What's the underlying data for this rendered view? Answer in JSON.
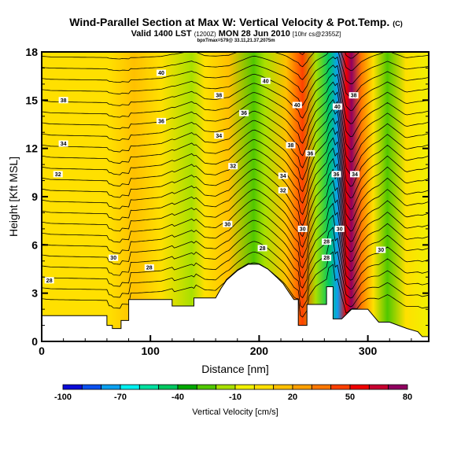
{
  "chart_data": {
    "type": "heatmap",
    "title": "Wind-Parallel Section at Max W: Vertical Velocity & Pot.Temp.",
    "title_mark": "(C)",
    "subtitle": "Valid 1400 LST",
    "subtitle_small": "(1200Z)",
    "subtitle_rest": "MON 28 Jun 2010",
    "subtitle_tag": "[10hr cs@2355Z]",
    "subsubtitle": "bpxTmax=579@ 33.11,21.37,2075m",
    "xlabel": "Distance [nm]",
    "ylabel": "Height [Kft MSL]",
    "xlim": [
      0,
      356
    ],
    "ylim": [
      0,
      18
    ],
    "xticks": [
      "0",
      "100",
      "200",
      "300"
    ],
    "xtick_values": [
      0,
      100,
      200,
      300
    ],
    "yticks": [
      "0",
      "3",
      "6",
      "9",
      "12",
      "15",
      "18"
    ],
    "ytick_values": [
      0,
      3,
      6,
      9,
      12,
      15,
      18
    ],
    "colorbar": {
      "label": "Vertical Velocity [cm/s]",
      "min": -100,
      "max": 80,
      "step": 10,
      "tick_labels": [
        "-100",
        "-70",
        "-40",
        "-10",
        "20",
        "50",
        "80"
      ],
      "tick_values": [
        -100,
        -70,
        -40,
        -10,
        20,
        50,
        80
      ],
      "colors": [
        "#0a0ad8",
        "#0a50f0",
        "#0aa0f0",
        "#00f0f0",
        "#00e0a0",
        "#00c860",
        "#00a800",
        "#50c800",
        "#a8e000",
        "#f0f000",
        "#ffe000",
        "#ffc000",
        "#ffa000",
        "#ff7800",
        "#ff4000",
        "#f00000",
        "#c80030",
        "#900060"
      ]
    },
    "contour_field": "Potential Temperature",
    "contour_labels": [
      {
        "text": "40",
        "x": 110,
        "y": 16.7
      },
      {
        "text": "38",
        "x": 20,
        "y": 15.0
      },
      {
        "text": "36",
        "x": 110,
        "y": 13.7
      },
      {
        "text": "34",
        "x": 20,
        "y": 12.3
      },
      {
        "text": "32",
        "x": 15,
        "y": 10.4
      },
      {
        "text": "40",
        "x": 206,
        "y": 16.2
      },
      {
        "text": "38",
        "x": 163,
        "y": 15.3
      },
      {
        "text": "36",
        "x": 186,
        "y": 14.2
      },
      {
        "text": "34",
        "x": 163,
        "y": 12.8
      },
      {
        "text": "32",
        "x": 176,
        "y": 10.9
      },
      {
        "text": "40",
        "x": 235,
        "y": 14.7
      },
      {
        "text": "38",
        "x": 229,
        "y": 12.2
      },
      {
        "text": "36",
        "x": 247,
        "y": 11.7
      },
      {
        "text": "34",
        "x": 222,
        "y": 10.3
      },
      {
        "text": "32",
        "x": 222,
        "y": 9.4
      },
      {
        "text": "40",
        "x": 272,
        "y": 14.6
      },
      {
        "text": "38",
        "x": 287,
        "y": 15.3
      },
      {
        "text": "36",
        "x": 271,
        "y": 10.4
      },
      {
        "text": "34",
        "x": 288,
        "y": 10.4
      },
      {
        "text": "30",
        "x": 240,
        "y": 7.0
      },
      {
        "text": "30",
        "x": 274,
        "y": 7.0
      },
      {
        "text": "28",
        "x": 262,
        "y": 6.2
      },
      {
        "text": "28",
        "x": 262,
        "y": 5.2
      },
      {
        "text": "30",
        "x": 312,
        "y": 5.7
      },
      {
        "text": "30",
        "x": 171,
        "y": 7.3
      },
      {
        "text": "30",
        "x": 66,
        "y": 5.2
      },
      {
        "text": "28",
        "x": 99,
        "y": 4.6
      },
      {
        "text": "28",
        "x": 7,
        "y": 3.8
      },
      {
        "text": "28",
        "x": 203,
        "y": 5.8
      }
    ],
    "terrain": [
      [
        0,
        1.6
      ],
      [
        60,
        1.6
      ],
      [
        60,
        1.0
      ],
      [
        65,
        1.0
      ],
      [
        65,
        0.8
      ],
      [
        73,
        0.8
      ],
      [
        73,
        1.3
      ],
      [
        80,
        1.3
      ],
      [
        80,
        2.6
      ],
      [
        120,
        2.6
      ],
      [
        120,
        2.2
      ],
      [
        140,
        2.2
      ],
      [
        140,
        2.7
      ],
      [
        160,
        2.7
      ],
      [
        165,
        3.3
      ],
      [
        170,
        3.8
      ],
      [
        180,
        4.4
      ],
      [
        190,
        4.8
      ],
      [
        200,
        4.8
      ],
      [
        208,
        4.5
      ],
      [
        216,
        4.0
      ],
      [
        222,
        3.6
      ],
      [
        226,
        3.2
      ],
      [
        232,
        2.6
      ],
      [
        236,
        2.6
      ],
      [
        236,
        1.0
      ],
      [
        244,
        1.0
      ],
      [
        244,
        2.3
      ],
      [
        252,
        2.3
      ],
      [
        262,
        2.3
      ],
      [
        262,
        3.4
      ],
      [
        268,
        3.4
      ],
      [
        268,
        1.4
      ],
      [
        276,
        1.4
      ],
      [
        276,
        1.4
      ],
      [
        285,
        2.0
      ],
      [
        300,
        2.0
      ],
      [
        310,
        1.2
      ],
      [
        320,
        1.2
      ],
      [
        336,
        0.8
      ],
      [
        346,
        0.6
      ],
      [
        350,
        0.3
      ],
      [
        356,
        0.3
      ]
    ],
    "w_bands": [
      {
        "x": 0,
        "w": 2
      },
      {
        "x": 8,
        "w": 5
      },
      {
        "x": 62,
        "w": 8
      },
      {
        "x": 85,
        "w": 14
      },
      {
        "x": 110,
        "w": 8
      },
      {
        "x": 138,
        "w": -20
      },
      {
        "x": 150,
        "w": 5
      },
      {
        "x": 172,
        "w": 10
      },
      {
        "x": 195,
        "w": -25
      },
      {
        "x": 205,
        "w": -15
      },
      {
        "x": 225,
        "w": 10
      },
      {
        "x": 240,
        "w": 48
      },
      {
        "x": 252,
        "w": -20
      },
      {
        "x": 264,
        "w": -50
      },
      {
        "x": 272,
        "w": -75
      },
      {
        "x": 280,
        "w": 55
      },
      {
        "x": 285,
        "w": 75
      },
      {
        "x": 294,
        "w": 30
      },
      {
        "x": 305,
        "w": 0
      },
      {
        "x": 318,
        "w": -25
      },
      {
        "x": 335,
        "w": 5
      },
      {
        "x": 356,
        "w": -10
      }
    ]
  }
}
